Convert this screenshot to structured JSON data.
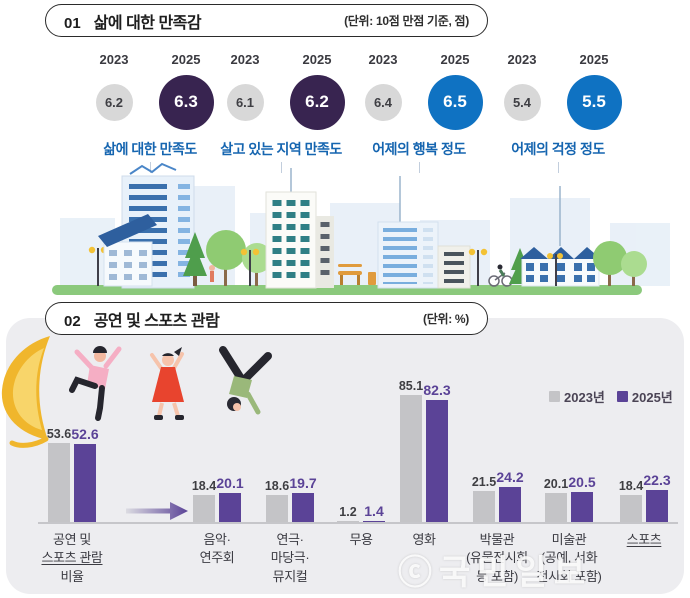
{
  "watermark": "ⓒ국민일보",
  "section1": {
    "number": "01",
    "title": "삶에 대한 만족감",
    "unit": "(단위: 10점 만점 기준, 점)",
    "year_prev": "2023",
    "year_curr": "2025",
    "prev_circle_color": "#d8d8d8",
    "label_color": "#1565b0",
    "metrics": [
      {
        "label": "삶에 대한 만족도",
        "prev": "6.2",
        "curr": "6.3",
        "curr_color": "#382450"
      },
      {
        "label": "살고 있는 지역 만족도",
        "prev": "6.1",
        "curr": "6.2",
        "curr_color": "#382450"
      },
      {
        "label": "어제의 행복 정도",
        "prev": "6.4",
        "curr": "6.5",
        "curr_color": "#0f72c2"
      },
      {
        "label": "어제의 걱정 정도",
        "prev": "5.4",
        "curr": "5.5",
        "curr_color": "#0f72c2"
      }
    ]
  },
  "section2": {
    "number": "02",
    "title": "공연 및 스포츠 관람",
    "unit": "(단위: %)",
    "legend": [
      {
        "label": "2023년",
        "color": "#c4c4c7"
      },
      {
        "label": "2025년",
        "color": "#5b4397"
      }
    ],
    "chart_data": {
      "type": "bar",
      "title": "공연 및 스포츠 관람",
      "unit": "%",
      "ylim": [
        0,
        100
      ],
      "grid": false,
      "legend_position": "top-right",
      "categories": [
        {
          "lines": [
            "공연 및",
            "스포츠 관람",
            "비율"
          ],
          "underline": [
            false,
            true,
            false
          ]
        },
        {
          "lines": [
            "음악·",
            "연주회"
          ],
          "underline": [
            false,
            false
          ]
        },
        {
          "lines": [
            "연극·",
            "마당극·",
            "뮤지컬"
          ],
          "underline": [
            false,
            false,
            false
          ]
        },
        {
          "lines": [
            "무용"
          ],
          "underline": [
            false
          ]
        },
        {
          "lines": [
            "영화"
          ],
          "underline": [
            false
          ]
        },
        {
          "lines": [
            "박물관",
            "(유물전시회",
            "등 포함)"
          ],
          "underline": [
            false,
            false,
            false
          ]
        },
        {
          "lines": [
            "미술관",
            "(공예, 서화",
            "전시회 포함)"
          ],
          "underline": [
            false,
            false,
            false
          ]
        },
        {
          "lines": [
            "스포츠"
          ],
          "underline": [
            true
          ]
        }
      ],
      "series": [
        {
          "name": "2023년",
          "color": "#c4c4c7",
          "label_color": "#3e3e42",
          "values": [
            53.6,
            18.4,
            18.6,
            1.2,
            85.1,
            21.5,
            20.1,
            18.4
          ]
        },
        {
          "name": "2025년",
          "color": "#5b4397",
          "label_color": "#5b4397",
          "values": [
            52.6,
            20.1,
            19.7,
            1.4,
            82.3,
            24.2,
            20.5,
            22.3
          ]
        }
      ]
    }
  },
  "illustrations": {
    "icons": [
      "city-skyline",
      "megaphone-icon",
      "dancer-jumping-icon",
      "dancer-dress-icon",
      "dancer-breakdance-icon"
    ]
  }
}
